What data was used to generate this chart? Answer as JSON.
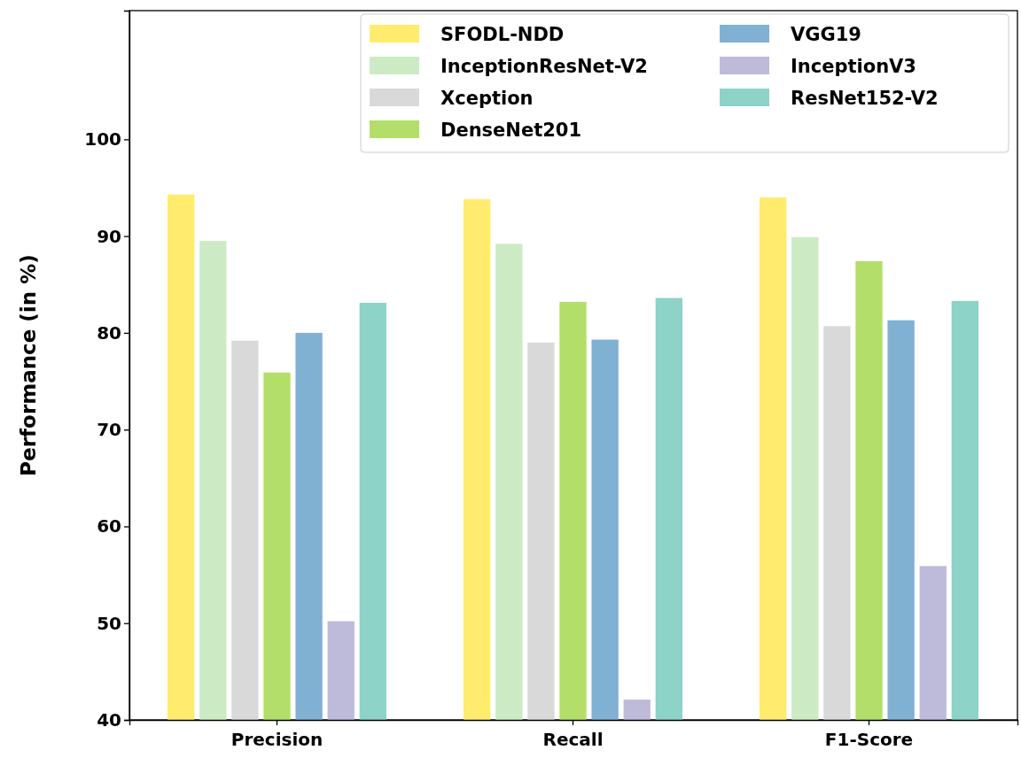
{
  "chart_data": {
    "type": "bar",
    "ylabel": "Performance (in %)",
    "categories": [
      "Precision",
      "Recall",
      "F1-Score"
    ],
    "series": [
      {
        "name": "SFODL-NDD",
        "color": "#ffeb6e",
        "values": [
          94.3,
          93.8,
          94.0
        ]
      },
      {
        "name": "InceptionResNet-V2",
        "color": "#ccebc5",
        "values": [
          89.5,
          89.2,
          89.9
        ]
      },
      {
        "name": "Xception",
        "color": "#d9d9d9",
        "values": [
          79.2,
          79.0,
          80.7
        ]
      },
      {
        "name": "DenseNet201",
        "color": "#b3de69",
        "values": [
          75.9,
          83.2,
          87.4
        ]
      },
      {
        "name": "VGG19",
        "color": "#80b1d3",
        "values": [
          80.0,
          79.3,
          81.3
        ]
      },
      {
        "name": "InceptionV3",
        "color": "#bebada",
        "values": [
          50.2,
          42.1,
          55.9
        ]
      },
      {
        "name": "ResNet152-V2",
        "color": "#8dd3c7",
        "values": [
          83.1,
          83.6,
          83.3
        ]
      }
    ],
    "ylim": [
      40,
      113.3
    ],
    "yticks": [
      40,
      50,
      60,
      70,
      80,
      90,
      100
    ],
    "grid": false,
    "legend": "top right"
  }
}
